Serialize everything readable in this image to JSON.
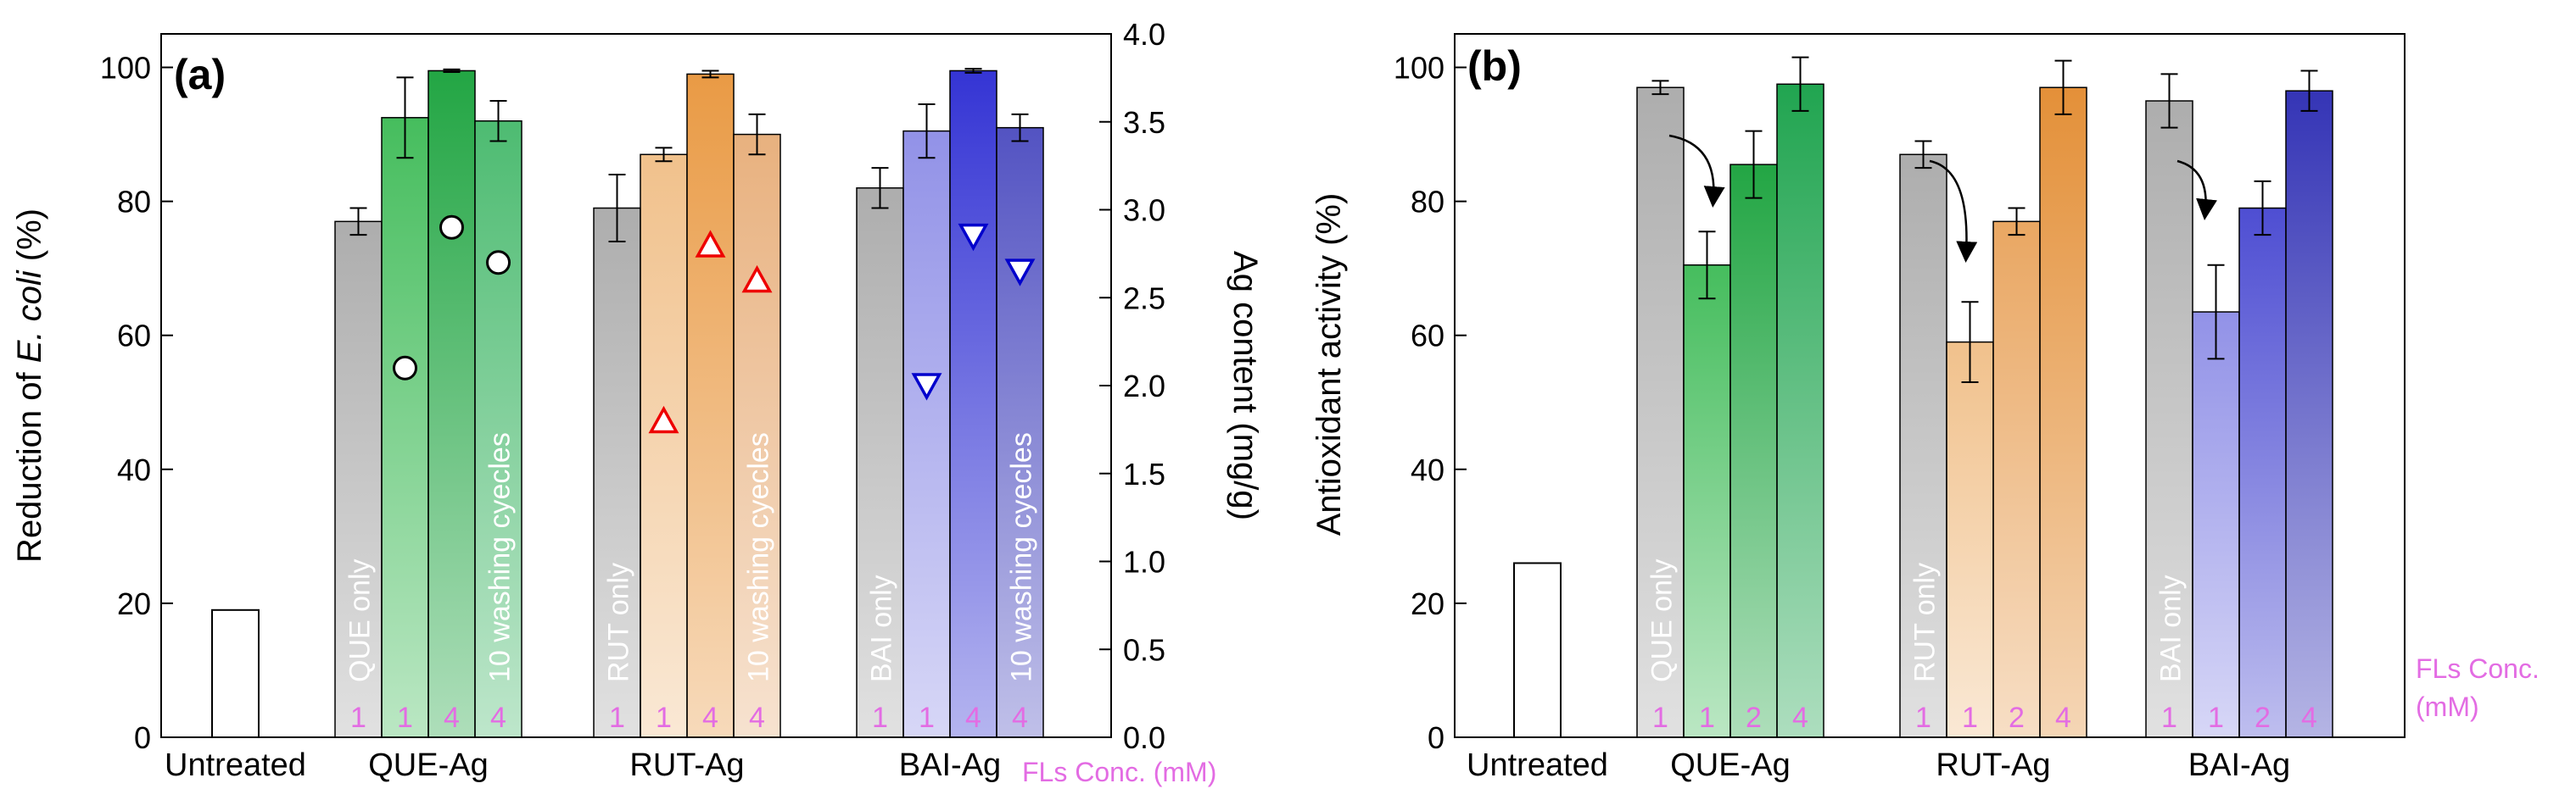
{
  "chart_data": [
    {
      "type": "bar",
      "panel_label": "(a)",
      "ylabel_prefix": "Reduction of ",
      "ylabel_italic": "E. coli",
      "ylabel_suffix": " (%)",
      "ylim": [
        0,
        105
      ],
      "yticks": [
        0,
        20,
        40,
        60,
        80,
        100
      ],
      "y2label": "Ag content (mg/g)",
      "y2lim": [
        0,
        4.0
      ],
      "y2ticks": [
        "0.0",
        "0.5",
        "1.0",
        "1.5",
        "2.0",
        "2.5",
        "3.0",
        "3.5",
        "4.0"
      ],
      "groups": [
        "Untreated",
        "QUE-Ag",
        "RUT-Ag",
        "BAI-Ag"
      ],
      "x_note": "FLs Conc. (mM)",
      "untreated_value": 19,
      "series": [
        {
          "name": "QUE",
          "colors": [
            "#a9a9a9",
            "#3cba55",
            "#17a13a",
            "#44b86a"
          ],
          "bar_labels": [
            "QUE only",
            "",
            "",
            "10 washing cyecles"
          ],
          "conc": [
            "1",
            "1",
            "4",
            "4"
          ],
          "values": [
            77,
            92.5,
            99.5,
            92
          ],
          "errors": [
            2,
            6,
            0.2,
            3
          ],
          "marker": "circle",
          "ag_content": [
            null,
            2.1,
            2.9,
            2.7
          ]
        },
        {
          "name": "RUT",
          "colors": [
            "#a9a9a9",
            "#f0be86",
            "#e8953b",
            "#e7ad78"
          ],
          "bar_labels": [
            "RUT only",
            "",
            "",
            "10 washing cyecles"
          ],
          "conc": [
            "1",
            "1",
            "4",
            "4"
          ],
          "values": [
            79,
            87,
            99,
            90
          ],
          "errors": [
            5,
            1,
            0.5,
            3
          ],
          "marker": "triangle-up",
          "ag_content": [
            null,
            1.8,
            2.8,
            2.6
          ]
        },
        {
          "name": "BAI",
          "colors": [
            "#a9a9a9",
            "#8c8ce6",
            "#2a2ad2",
            "#4a4abf"
          ],
          "bar_labels": [
            "BAI only",
            "",
            "",
            "10 washing cyecles"
          ],
          "conc": [
            "1",
            "1",
            "4",
            "4"
          ],
          "values": [
            82,
            90.5,
            99.5,
            91
          ],
          "errors": [
            3,
            4,
            0.3,
            2
          ],
          "marker": "triangle-down",
          "ag_content": [
            null,
            2.0,
            2.85,
            2.65
          ]
        }
      ]
    },
    {
      "type": "bar",
      "panel_label": "(b)",
      "ylabel": "Antioxidant activity (%)",
      "ylim": [
        0,
        105
      ],
      "yticks": [
        0,
        20,
        40,
        60,
        80,
        100
      ],
      "groups": [
        "Untreated",
        "QUE-Ag",
        "RUT-Ag",
        "BAI-Ag"
      ],
      "x_note_line1": "FLs Conc.",
      "x_note_line2": "(mM)",
      "untreated_value": 26,
      "series": [
        {
          "name": "QUE",
          "colors": [
            "#a9a9a9",
            "#3cba55",
            "#17a13a",
            "#15a047"
          ],
          "bar_labels": [
            "QUE only",
            "",
            "",
            ""
          ],
          "conc": [
            "1",
            "1",
            "2",
            "4"
          ],
          "values": [
            97,
            70.5,
            85.5,
            97.5
          ],
          "errors": [
            1,
            5,
            5,
            4
          ]
        },
        {
          "name": "RUT",
          "colors": [
            "#a9a9a9",
            "#f0be86",
            "#e8a25a",
            "#e28a2e"
          ],
          "bar_labels": [
            "RUT only",
            "",
            "",
            ""
          ],
          "conc": [
            "1",
            "1",
            "2",
            "4"
          ],
          "values": [
            87,
            59,
            77,
            97
          ],
          "errors": [
            2,
            6,
            2,
            4
          ]
        },
        {
          "name": "BAI",
          "colors": [
            "#a9a9a9",
            "#8c8ce6",
            "#4545d0",
            "#2a2ab2"
          ],
          "bar_labels": [
            "BAI only",
            "",
            "",
            ""
          ],
          "conc": [
            "1",
            "1",
            "2",
            "4"
          ],
          "values": [
            95,
            63.5,
            79,
            96.5
          ],
          "errors": [
            4,
            7,
            4,
            3
          ]
        }
      ]
    }
  ]
}
